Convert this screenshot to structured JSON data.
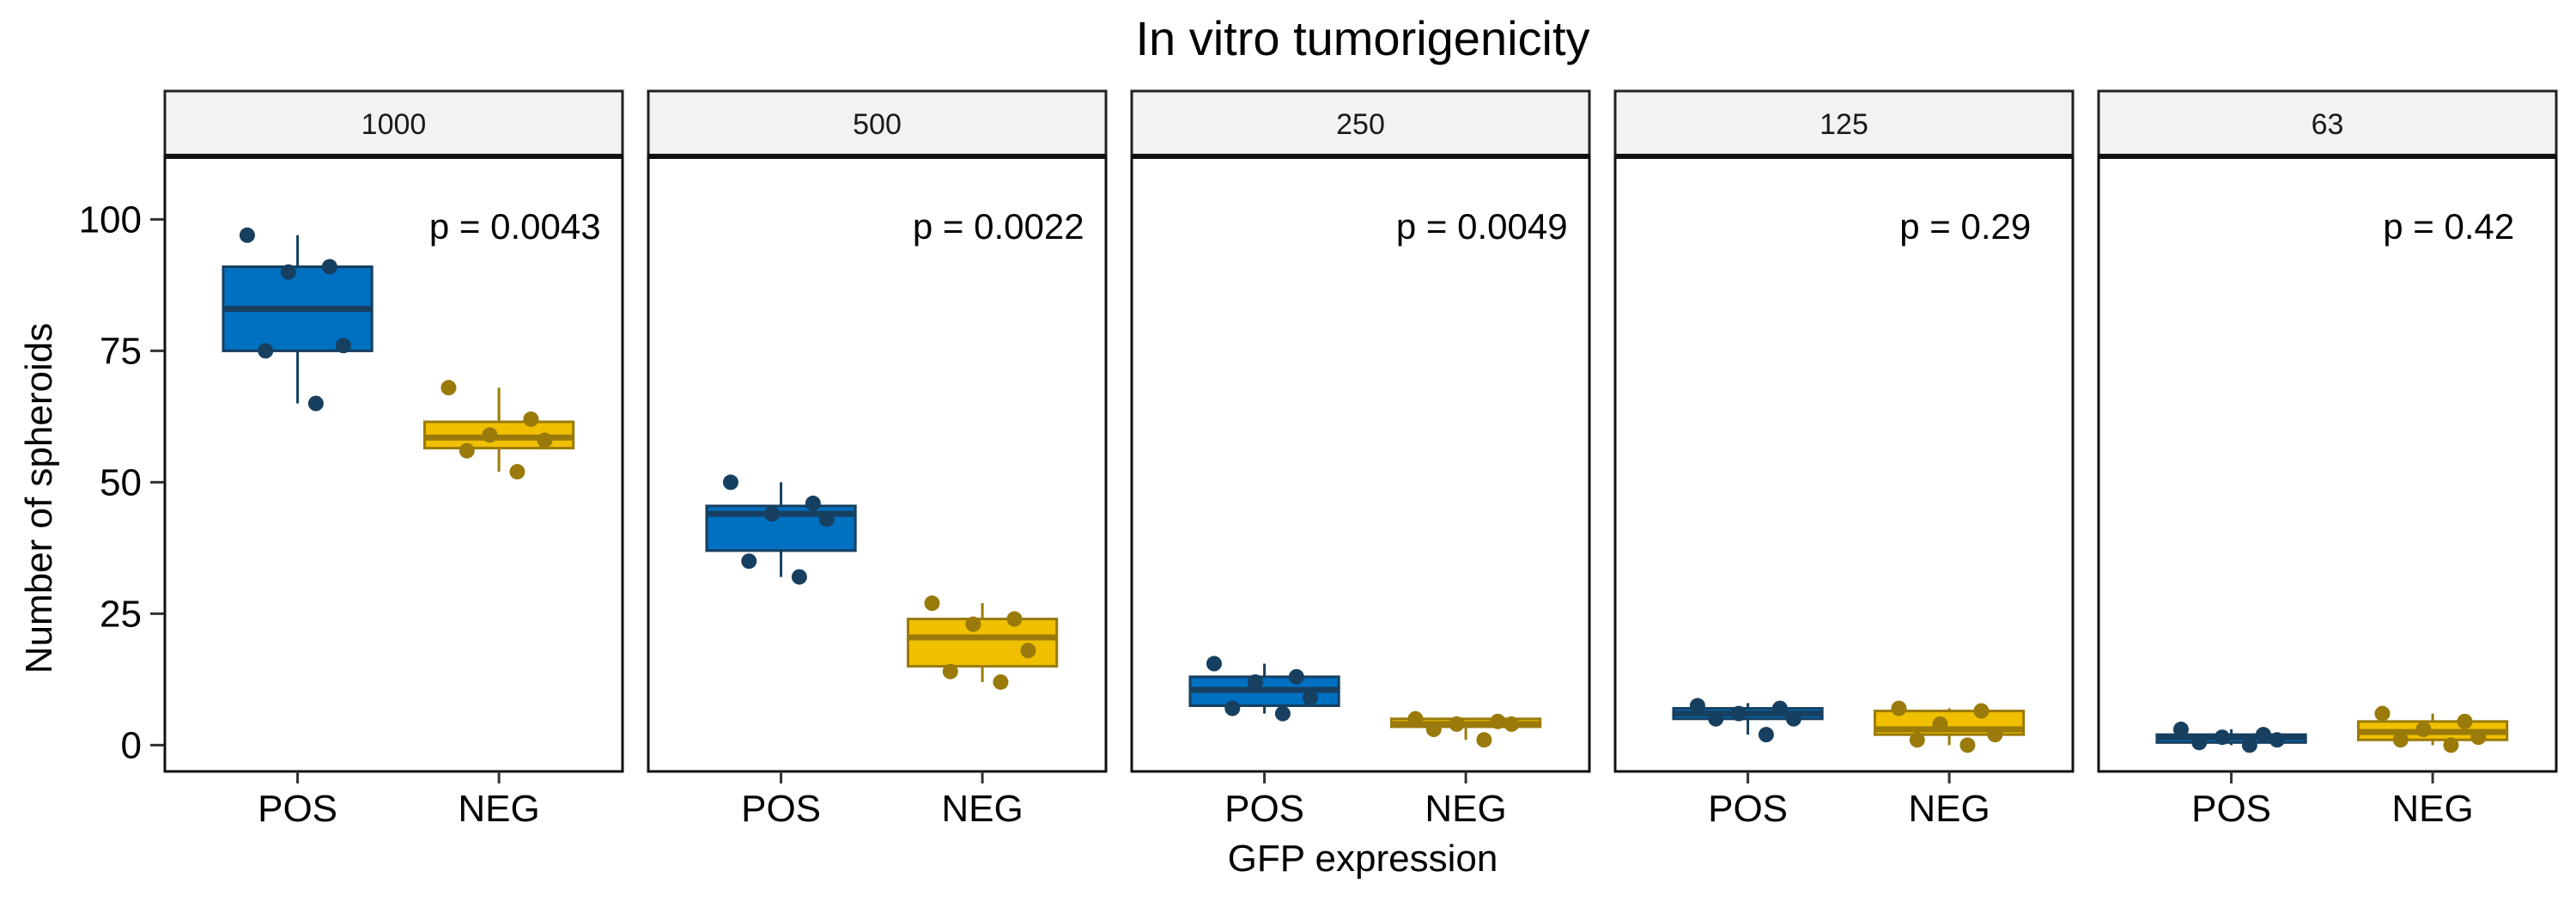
{
  "chart_data": {
    "type": "box",
    "title": "In vitro tumorigenicity",
    "xlabel": "GFP expression",
    "ylabel": "Number of spheroids",
    "categories": [
      "POS",
      "NEG"
    ],
    "ylim": [
      -5,
      112
    ],
    "yticks": [
      0,
      25,
      50,
      75,
      100
    ],
    "colors": {
      "POS": {
        "fill": "#0070c0",
        "line": "#173f5f",
        "point": "#173f5f"
      },
      "NEG": {
        "fill": "#f0c000",
        "line": "#9a7a0a",
        "point": "#9a7a0a"
      }
    },
    "panels": [
      {
        "label": "1000",
        "pvalue": "p = 0.0043",
        "boxes": [
          {
            "group": "POS",
            "q1": 75,
            "median": 83,
            "q3": 91,
            "whisker_low": 65,
            "whisker_high": 97,
            "points": [
              97,
              91,
              90,
              76,
              75,
              65
            ]
          },
          {
            "group": "NEG",
            "q1": 56.5,
            "median": 58.5,
            "q3": 61.5,
            "whisker_low": 52,
            "whisker_high": 68,
            "points": [
              68,
              62,
              59,
              58,
              56,
              52
            ]
          }
        ]
      },
      {
        "label": "500",
        "pvalue": "p = 0.0022",
        "boxes": [
          {
            "group": "POS",
            "q1": 37,
            "median": 44,
            "q3": 45.5,
            "whisker_low": 32,
            "whisker_high": 50,
            "points": [
              50,
              46,
              44,
              43,
              35,
              32
            ]
          },
          {
            "group": "NEG",
            "q1": 15,
            "median": 20.5,
            "q3": 24,
            "whisker_low": 12,
            "whisker_high": 27,
            "points": [
              27,
              24,
              23,
              18,
              14,
              12
            ]
          }
        ]
      },
      {
        "label": "250",
        "pvalue": "p = 0.0049",
        "boxes": [
          {
            "group": "POS",
            "q1": 7.5,
            "median": 10.5,
            "q3": 13,
            "whisker_low": 6,
            "whisker_high": 15.5,
            "points": [
              15.5,
              13,
              12,
              9,
              7,
              6
            ]
          },
          {
            "group": "NEG",
            "q1": 3.5,
            "median": 4,
            "q3": 5,
            "whisker_low": 1,
            "whisker_high": 5,
            "points": [
              5,
              4.5,
              4,
              4,
              3,
              1
            ]
          }
        ]
      },
      {
        "label": "125",
        "pvalue": "p = 0.29",
        "boxes": [
          {
            "group": "POS",
            "q1": 5,
            "median": 6,
            "q3": 7,
            "whisker_low": 2,
            "whisker_high": 8,
            "points": [
              7.5,
              7,
              6,
              5,
              5,
              2
            ]
          },
          {
            "group": "NEG",
            "q1": 2,
            "median": 3,
            "q3": 6.5,
            "whisker_low": 0,
            "whisker_high": 7,
            "points": [
              7,
              6.5,
              4,
              2,
              1,
              0
            ]
          }
        ]
      },
      {
        "label": "63",
        "pvalue": "p = 0.42",
        "boxes": [
          {
            "group": "POS",
            "q1": 0.5,
            "median": 1.5,
            "q3": 2,
            "whisker_low": 0,
            "whisker_high": 3,
            "points": [
              3,
              2,
              1.5,
              1,
              0.5,
              0
            ]
          },
          {
            "group": "NEG",
            "q1": 1,
            "median": 2.5,
            "q3": 4.5,
            "whisker_low": 0,
            "whisker_high": 6,
            "points": [
              6,
              4.5,
              3,
              1.5,
              1,
              0
            ]
          }
        ]
      }
    ]
  }
}
